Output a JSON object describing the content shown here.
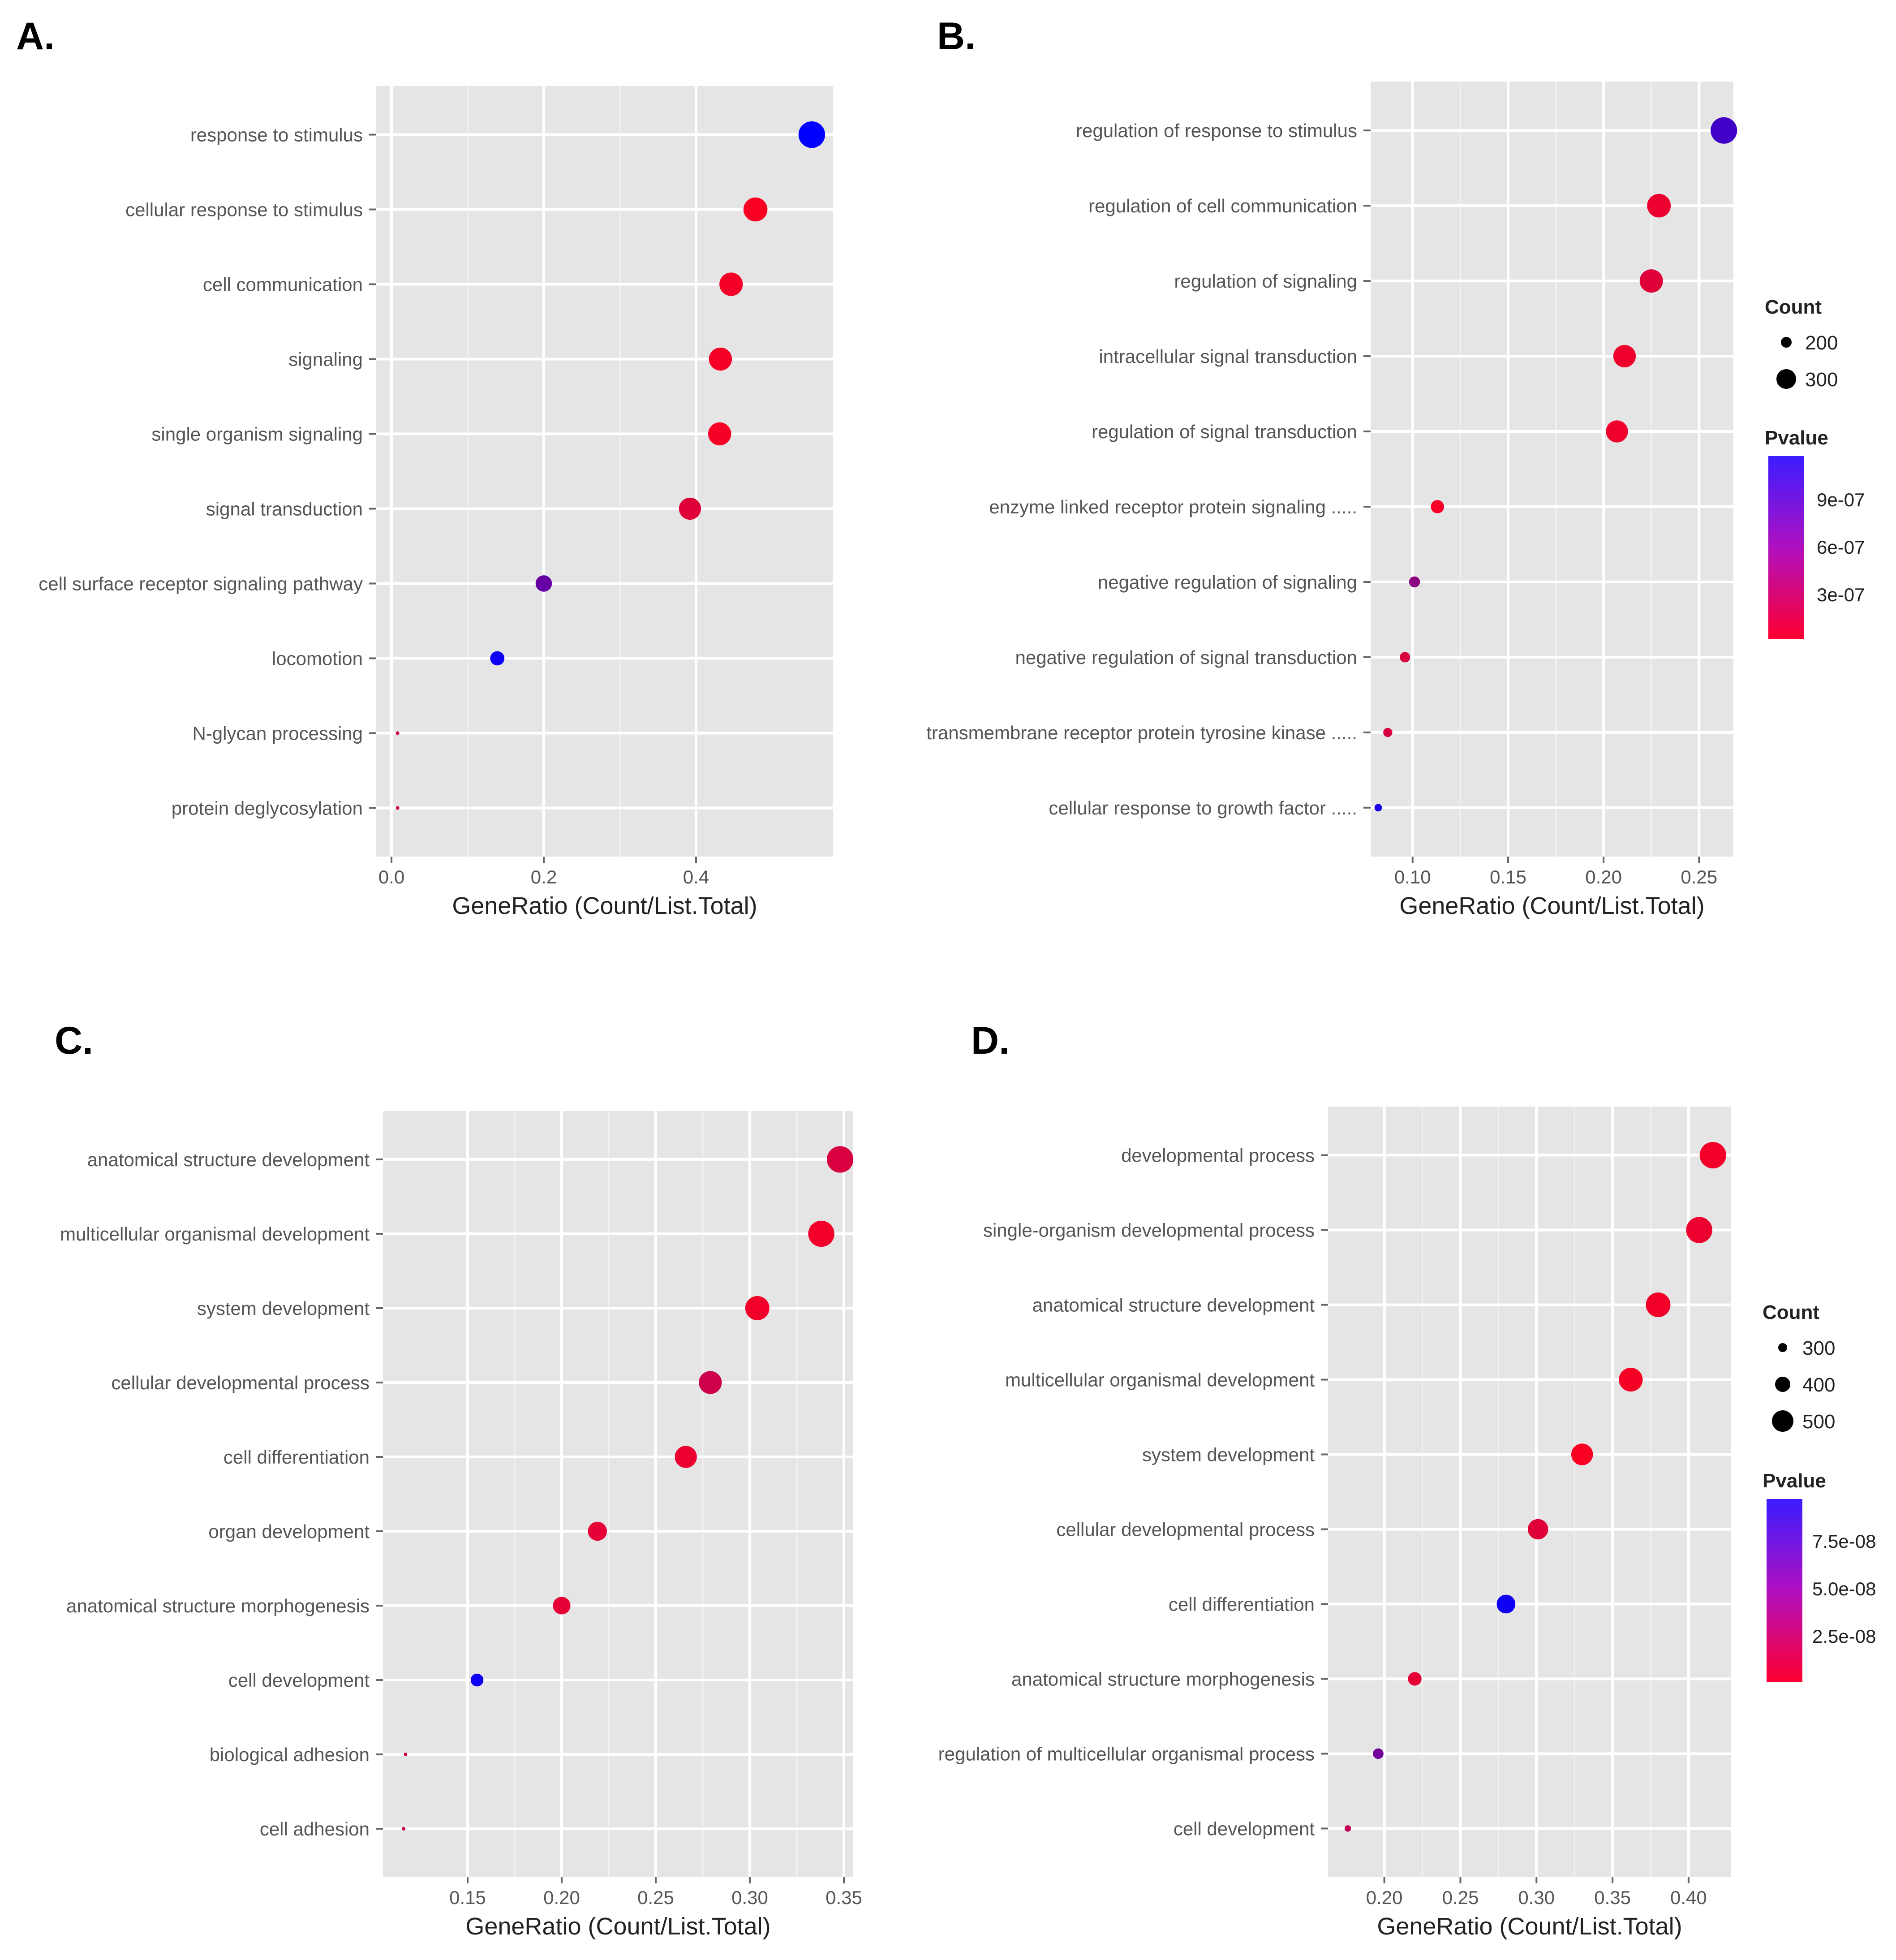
{
  "figure": {
    "panels": [
      "A.",
      "B.",
      "C.",
      "D."
    ]
  },
  "colors": {
    "panel_bg": "#e5e5e5",
    "grid": "#ffffff",
    "tick_text": "#555555",
    "axis_title": "#222222",
    "panel_label": "#000000",
    "pvalue_low": "#ff0000",
    "pvalue_high": "#0000ff"
  },
  "chart_data": [
    {
      "type": "scatter",
      "label": "A.",
      "xlabel": "GeneRatio (Count/List.Total)",
      "xlim": [
        -0.02,
        0.58
      ],
      "xticks": [
        0.0,
        0.2,
        0.4
      ],
      "xtick_labels": [
        "0.0",
        "0.2",
        "0.4"
      ],
      "categories": [
        "response to stimulus",
        "cellular response to stimulus",
        "cell communication",
        "signaling",
        "single organism signaling",
        "signal transduction",
        "cell surface receptor signaling pathway",
        "locomotion",
        "N-glycan processing",
        "protein deglycosylation"
      ],
      "x": [
        0.552,
        0.478,
        0.446,
        0.432,
        0.431,
        0.392,
        0.2,
        0.139,
        0.008,
        0.008
      ],
      "count": [
        440,
        350,
        330,
        320,
        320,
        290,
        150,
        110,
        20,
        20
      ],
      "pvalue_color": [
        1.0,
        0.02,
        0.04,
        0.03,
        0.03,
        0.12,
        0.6,
        0.95,
        0.2,
        0.2
      ],
      "legend": null
    },
    {
      "type": "scatter",
      "label": "B.",
      "xlabel": "GeneRatio (Count/List.Total)",
      "xlim": [
        0.078,
        0.268
      ],
      "xticks": [
        0.1,
        0.15,
        0.2,
        0.25
      ],
      "xtick_labels": [
        "0.10",
        "0.15",
        "0.20",
        "0.25"
      ],
      "categories": [
        "regulation of response to stimulus",
        "regulation of cell communication",
        "regulation of signaling",
        "intracellular signal transduction",
        "regulation of signal transduction",
        "enzyme linked receptor protein signaling .....",
        "negative regulation of signaling",
        "negative regulation of signal transduction",
        "transmembrane receptor protein tyrosine kinase .....",
        "cellular response to growth factor ....."
      ],
      "x": [
        0.263,
        0.229,
        0.225,
        0.211,
        0.207,
        0.113,
        0.101,
        0.096,
        0.087,
        0.082
      ],
      "count": [
        420,
        340,
        330,
        310,
        300,
        140,
        115,
        110,
        100,
        90
      ],
      "pvalue_color": [
        0.75,
        0.08,
        0.12,
        0.06,
        0.06,
        0.03,
        0.45,
        0.15,
        0.15,
        0.9
      ],
      "legend": {
        "count_title": "Count",
        "count_labels": [
          "200",
          "300"
        ],
        "pvalue_title": "Pvalue",
        "pvalue_labels": [
          "9e-07",
          "6e-07",
          "3e-07"
        ]
      }
    },
    {
      "type": "scatter",
      "label": "C.",
      "xlabel": "GeneRatio (Count/List.Total)",
      "xlim": [
        0.105,
        0.355
      ],
      "xticks": [
        0.15,
        0.2,
        0.25,
        0.3,
        0.35
      ],
      "xtick_labels": [
        "0.15",
        "0.20",
        "0.25",
        "0.30",
        "0.35"
      ],
      "categories": [
        "anatomical structure development",
        "multicellular organismal development",
        "system development",
        "cellular developmental process",
        "cell differentiation",
        "organ development",
        "anatomical structure morphogenesis",
        "cell development",
        "biological adhesion",
        "cell adhesion"
      ],
      "x": [
        0.348,
        0.338,
        0.304,
        0.279,
        0.266,
        0.219,
        0.2,
        0.155,
        0.117,
        0.116
      ],
      "count": [
        460,
        450,
        400,
        370,
        350,
        290,
        265,
        200,
        150,
        150
      ],
      "pvalue_color": [
        0.15,
        0.05,
        0.05,
        0.2,
        0.08,
        0.1,
        0.1,
        0.95,
        0.2,
        0.2
      ],
      "legend": null
    },
    {
      "type": "scatter",
      "label": "D.",
      "xlabel": "GeneRatio (Count/List.Total)",
      "xlim": [
        0.163,
        0.428
      ],
      "xticks": [
        0.2,
        0.25,
        0.3,
        0.35,
        0.4
      ],
      "xtick_labels": [
        "0.20",
        "0.25",
        "0.30",
        "0.35",
        "0.40"
      ],
      "categories": [
        "developmental process",
        "single-organism developmental process",
        "anatomical structure development",
        "multicellular organismal development",
        "system development",
        "cellular developmental process",
        "cell differentiation",
        "anatomical structure morphogenesis",
        "regulation of multicellular organismal process",
        "cell development"
      ],
      "x": [
        0.416,
        0.407,
        0.38,
        0.362,
        0.33,
        0.301,
        0.28,
        0.22,
        0.196,
        0.176
      ],
      "count": [
        550,
        540,
        500,
        480,
        430,
        400,
        370,
        290,
        260,
        235
      ],
      "pvalue_color": [
        0.05,
        0.08,
        0.05,
        0.03,
        0.02,
        0.12,
        0.95,
        0.1,
        0.55,
        0.25
      ],
      "legend": {
        "count_title": "Count",
        "count_labels": [
          "300",
          "400",
          "500"
        ],
        "pvalue_title": "Pvalue",
        "pvalue_labels": [
          "7.5e-08",
          "5.0e-08",
          "2.5e-08"
        ]
      }
    }
  ]
}
